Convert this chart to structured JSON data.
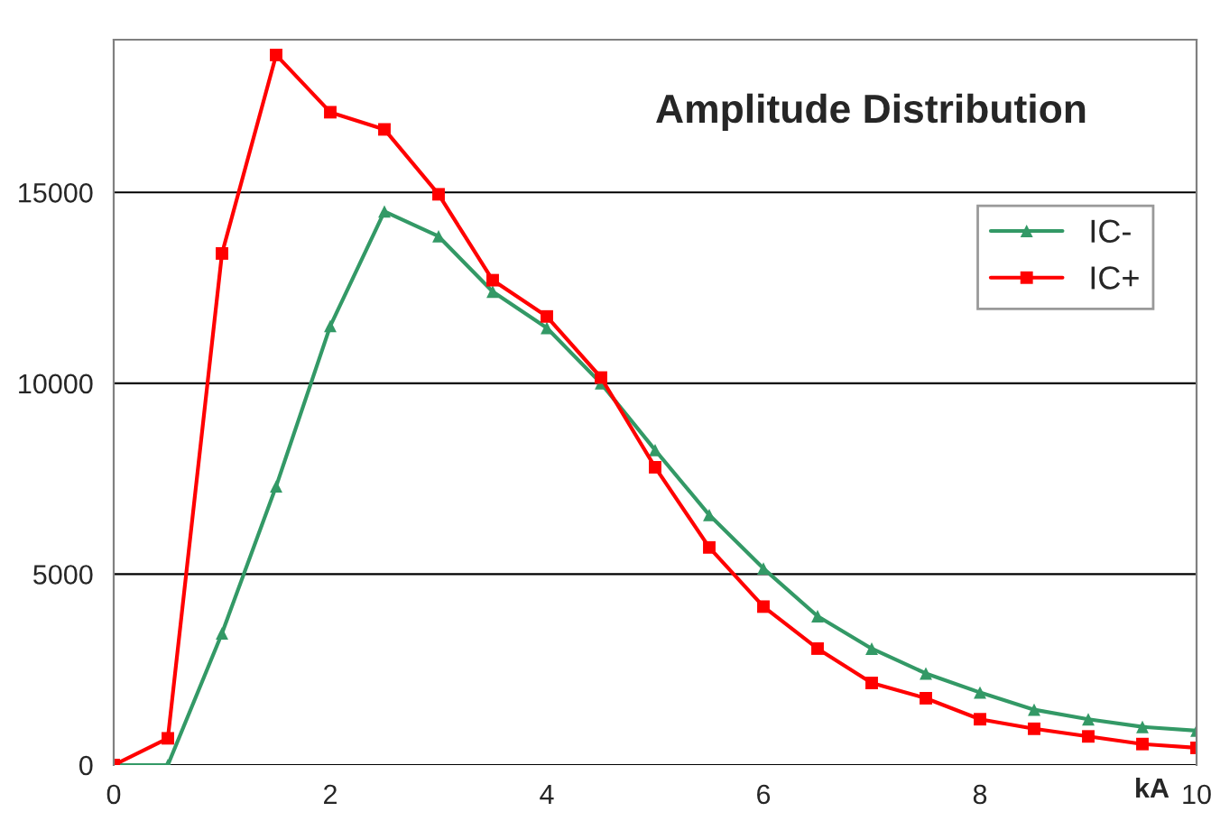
{
  "chart_data": {
    "type": "line",
    "title": "Amplitude Distribution",
    "xlabel": "kA",
    "x": [
      0,
      0.5,
      1,
      1.5,
      2,
      2.5,
      3,
      3.5,
      4,
      4.5,
      5,
      5.5,
      6,
      6.5,
      7,
      7.5,
      8,
      8.5,
      9,
      9.5,
      10
    ],
    "series": [
      {
        "name": "IC-",
        "color": "#339966",
        "marker": "triangle",
        "values": [
          0,
          0,
          3450,
          7300,
          11500,
          14500,
          13850,
          12400,
          11450,
          10000,
          8250,
          6550,
          5150,
          3900,
          3050,
          2400,
          1900,
          1450,
          1200,
          1000,
          900
        ]
      },
      {
        "name": "IC+",
        "color": "#ff0000",
        "marker": "square",
        "values": [
          0,
          700,
          13400,
          18600,
          17100,
          16650,
          14950,
          12700,
          11750,
          10150,
          7800,
          5700,
          4150,
          3050,
          2150,
          1750,
          1200,
          950,
          750,
          550,
          450
        ]
      }
    ],
    "xlim": [
      0,
      10
    ],
    "ylim": [
      0,
      19000
    ],
    "xticks": [
      0,
      2,
      4,
      6,
      8,
      10
    ],
    "yticks": [
      0,
      5000,
      10000,
      15000
    ],
    "grid": "y",
    "legend": "right",
    "line_style": "solid"
  }
}
